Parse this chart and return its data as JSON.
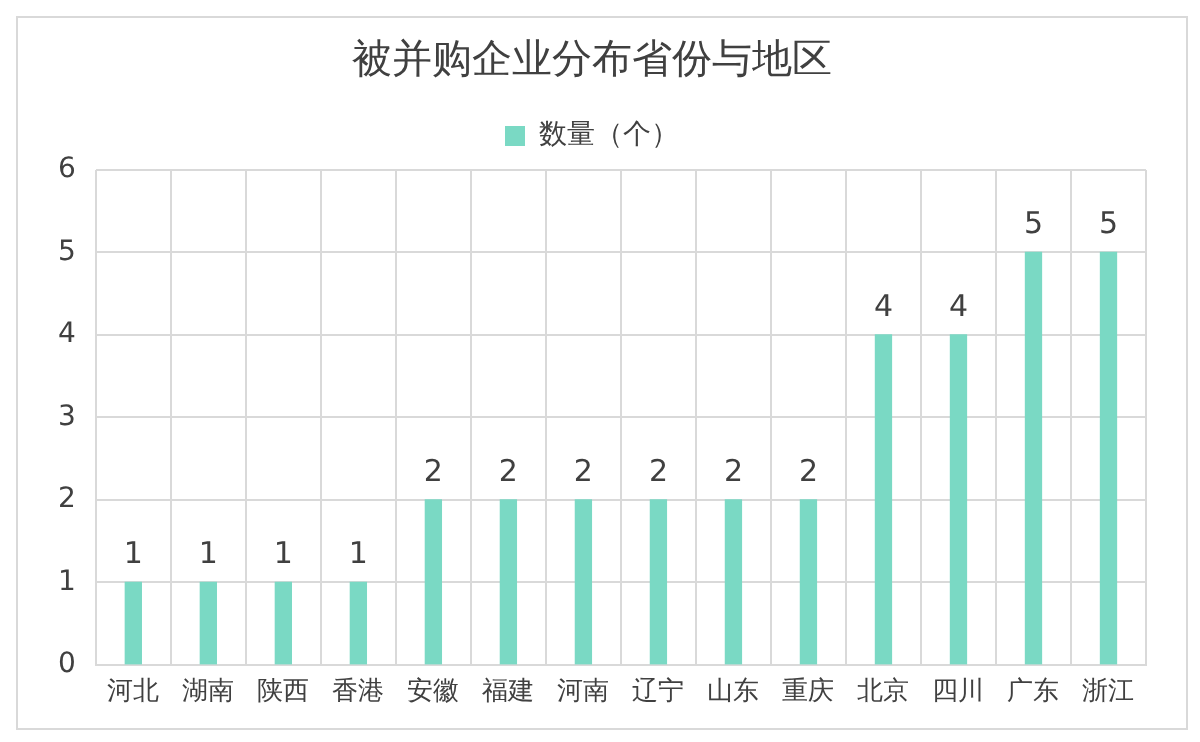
{
  "chart_data": {
    "type": "bar",
    "title": "被并购企业分布省份与地区",
    "categories": [
      "河北",
      "湖南",
      "陕西",
      "香港",
      "安徽",
      "福建",
      "河南",
      "辽宁",
      "山东",
      "重庆",
      "北京",
      "四川",
      "广东",
      "浙江"
    ],
    "series": [
      {
        "name": "数量（个）",
        "color": "#7ad9c4",
        "values": [
          1,
          1,
          1,
          1,
          2,
          2,
          2,
          2,
          2,
          2,
          4,
          4,
          5,
          5
        ]
      }
    ],
    "ylim": [
      0,
      6
    ],
    "yticks": [
      0,
      1,
      2,
      3,
      4,
      5,
      6
    ],
    "grid": true,
    "legend": "top",
    "data_labels": true
  }
}
